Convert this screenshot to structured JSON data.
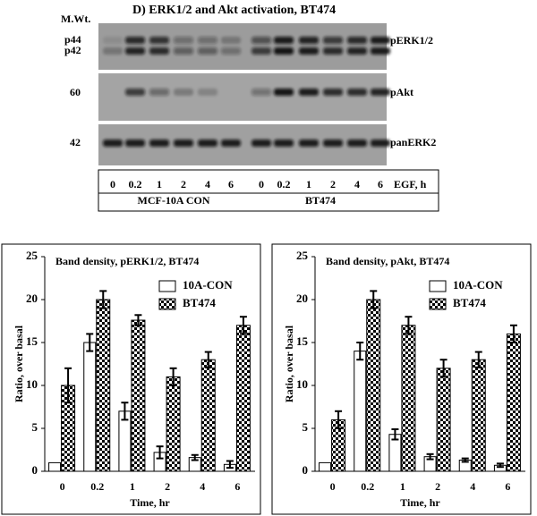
{
  "blot": {
    "title": "D) ERK1/2 and Akt activation, BT474",
    "mw_label": "M.Wt.",
    "markers": [
      "p44",
      "p42",
      "60",
      "42"
    ],
    "proteins": [
      "pERK1/2",
      "pAkt",
      "panERK2"
    ],
    "lanes": [
      "0",
      "0.2",
      "1",
      "2",
      "4",
      "6",
      "0",
      "0.2",
      "1",
      "2",
      "4",
      "6"
    ],
    "treatment": "EGF, h",
    "groups": [
      "MCF-10A CON",
      "BT474"
    ]
  },
  "chart_data": [
    {
      "type": "bar",
      "title": "Band density, pERK1/2, BT474",
      "x_label": "Time, hr",
      "y_label": "Ratio, over basal",
      "categories": [
        "0",
        "0.2",
        "1",
        "2",
        "4",
        "6"
      ],
      "series": [
        {
          "name": "10A-CON",
          "color": "#ffffff",
          "values": [
            1,
            15,
            7,
            2.2,
            1.6,
            0.8
          ],
          "errors": [
            null,
            1,
            1,
            0.7,
            0.3,
            0.4
          ]
        },
        {
          "name": "BT474",
          "color": "#000000",
          "pattern": "checker",
          "values": [
            10,
            20,
            17.6,
            11,
            13,
            17
          ],
          "errors": [
            2,
            1,
            0.6,
            1,
            0.9,
            1
          ]
        }
      ],
      "ylim": [
        0,
        25
      ],
      "yticks": [
        0,
        5,
        10,
        15,
        20,
        25
      ]
    },
    {
      "type": "bar",
      "title": "Band density, pAkt, BT474",
      "x_label": "Time, hr",
      "y_label": "Ratio, over basal",
      "categories": [
        "0",
        "0.2",
        "1",
        "2",
        "4",
        "6"
      ],
      "series": [
        {
          "name": "10A-CON",
          "color": "#ffffff",
          "values": [
            1,
            14,
            4.3,
            1.7,
            1.3,
            0.7
          ],
          "errors": [
            null,
            1,
            0.6,
            0.3,
            0.2,
            0.2
          ]
        },
        {
          "name": "BT474",
          "color": "#000000",
          "pattern": "checker",
          "values": [
            6,
            20,
            17,
            12,
            13,
            16
          ],
          "errors": [
            1,
            1,
            1,
            1,
            0.9,
            1
          ]
        }
      ],
      "ylim": [
        0,
        25
      ],
      "yticks": [
        0,
        5,
        10,
        15,
        20,
        25
      ]
    }
  ]
}
